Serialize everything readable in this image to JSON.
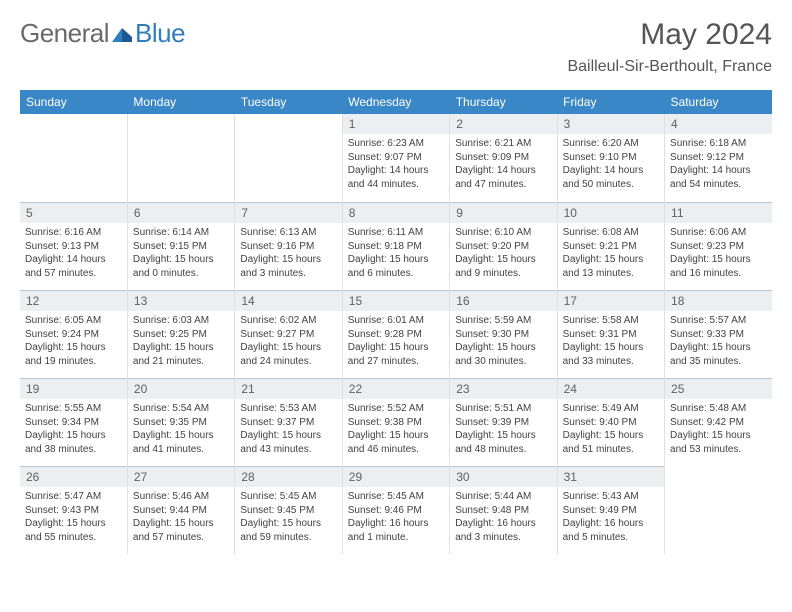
{
  "brand": {
    "part1": "General",
    "part2": "Blue"
  },
  "title": "May 2024",
  "location": "Bailleul-Sir-Berthoult, France",
  "colors": {
    "header_bg": "#3a87c7",
    "daynum_bg": "#eceff1",
    "border": "#b9c5cf"
  },
  "weekdays": [
    "Sunday",
    "Monday",
    "Tuesday",
    "Wednesday",
    "Thursday",
    "Friday",
    "Saturday"
  ],
  "weeks": [
    [
      {
        "n": "",
        "empty": true
      },
      {
        "n": "",
        "empty": true
      },
      {
        "n": "",
        "empty": true
      },
      {
        "n": "1",
        "sr": "6:23 AM",
        "ss": "9:07 PM",
        "dl": "14 hours and 44 minutes."
      },
      {
        "n": "2",
        "sr": "6:21 AM",
        "ss": "9:09 PM",
        "dl": "14 hours and 47 minutes."
      },
      {
        "n": "3",
        "sr": "6:20 AM",
        "ss": "9:10 PM",
        "dl": "14 hours and 50 minutes."
      },
      {
        "n": "4",
        "sr": "6:18 AM",
        "ss": "9:12 PM",
        "dl": "14 hours and 54 minutes."
      }
    ],
    [
      {
        "n": "5",
        "sr": "6:16 AM",
        "ss": "9:13 PM",
        "dl": "14 hours and 57 minutes."
      },
      {
        "n": "6",
        "sr": "6:14 AM",
        "ss": "9:15 PM",
        "dl": "15 hours and 0 minutes."
      },
      {
        "n": "7",
        "sr": "6:13 AM",
        "ss": "9:16 PM",
        "dl": "15 hours and 3 minutes."
      },
      {
        "n": "8",
        "sr": "6:11 AM",
        "ss": "9:18 PM",
        "dl": "15 hours and 6 minutes."
      },
      {
        "n": "9",
        "sr": "6:10 AM",
        "ss": "9:20 PM",
        "dl": "15 hours and 9 minutes."
      },
      {
        "n": "10",
        "sr": "6:08 AM",
        "ss": "9:21 PM",
        "dl": "15 hours and 13 minutes."
      },
      {
        "n": "11",
        "sr": "6:06 AM",
        "ss": "9:23 PM",
        "dl": "15 hours and 16 minutes."
      }
    ],
    [
      {
        "n": "12",
        "sr": "6:05 AM",
        "ss": "9:24 PM",
        "dl": "15 hours and 19 minutes."
      },
      {
        "n": "13",
        "sr": "6:03 AM",
        "ss": "9:25 PM",
        "dl": "15 hours and 21 minutes."
      },
      {
        "n": "14",
        "sr": "6:02 AM",
        "ss": "9:27 PM",
        "dl": "15 hours and 24 minutes."
      },
      {
        "n": "15",
        "sr": "6:01 AM",
        "ss": "9:28 PM",
        "dl": "15 hours and 27 minutes."
      },
      {
        "n": "16",
        "sr": "5:59 AM",
        "ss": "9:30 PM",
        "dl": "15 hours and 30 minutes."
      },
      {
        "n": "17",
        "sr": "5:58 AM",
        "ss": "9:31 PM",
        "dl": "15 hours and 33 minutes."
      },
      {
        "n": "18",
        "sr": "5:57 AM",
        "ss": "9:33 PM",
        "dl": "15 hours and 35 minutes."
      }
    ],
    [
      {
        "n": "19",
        "sr": "5:55 AM",
        "ss": "9:34 PM",
        "dl": "15 hours and 38 minutes."
      },
      {
        "n": "20",
        "sr": "5:54 AM",
        "ss": "9:35 PM",
        "dl": "15 hours and 41 minutes."
      },
      {
        "n": "21",
        "sr": "5:53 AM",
        "ss": "9:37 PM",
        "dl": "15 hours and 43 minutes."
      },
      {
        "n": "22",
        "sr": "5:52 AM",
        "ss": "9:38 PM",
        "dl": "15 hours and 46 minutes."
      },
      {
        "n": "23",
        "sr": "5:51 AM",
        "ss": "9:39 PM",
        "dl": "15 hours and 48 minutes."
      },
      {
        "n": "24",
        "sr": "5:49 AM",
        "ss": "9:40 PM",
        "dl": "15 hours and 51 minutes."
      },
      {
        "n": "25",
        "sr": "5:48 AM",
        "ss": "9:42 PM",
        "dl": "15 hours and 53 minutes."
      }
    ],
    [
      {
        "n": "26",
        "sr": "5:47 AM",
        "ss": "9:43 PM",
        "dl": "15 hours and 55 minutes."
      },
      {
        "n": "27",
        "sr": "5:46 AM",
        "ss": "9:44 PM",
        "dl": "15 hours and 57 minutes."
      },
      {
        "n": "28",
        "sr": "5:45 AM",
        "ss": "9:45 PM",
        "dl": "15 hours and 59 minutes."
      },
      {
        "n": "29",
        "sr": "5:45 AM",
        "ss": "9:46 PM",
        "dl": "16 hours and 1 minute."
      },
      {
        "n": "30",
        "sr": "5:44 AM",
        "ss": "9:48 PM",
        "dl": "16 hours and 3 minutes."
      },
      {
        "n": "31",
        "sr": "5:43 AM",
        "ss": "9:49 PM",
        "dl": "16 hours and 5 minutes."
      },
      {
        "n": "",
        "empty": true
      }
    ]
  ],
  "labels": {
    "sunrise": "Sunrise: ",
    "sunset": "Sunset: ",
    "daylight": "Daylight: "
  }
}
